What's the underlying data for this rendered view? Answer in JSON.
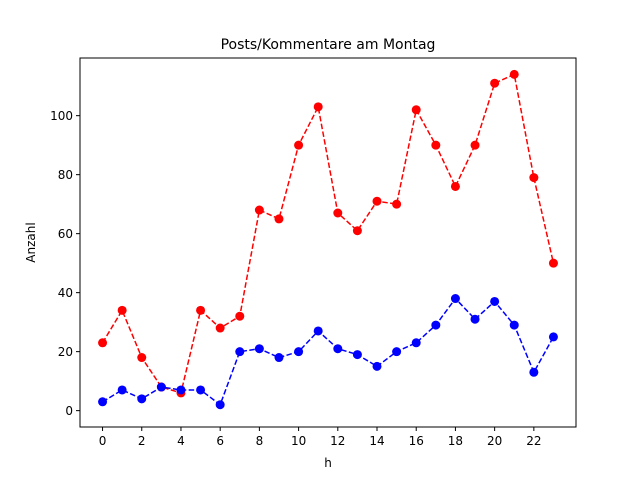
{
  "chart_data": {
    "type": "line",
    "title": "Posts/Kommentare am Montag",
    "xlabel": "h",
    "ylabel": "Anzahl",
    "x": [
      0,
      1,
      2,
      3,
      4,
      5,
      6,
      7,
      8,
      9,
      10,
      11,
      12,
      13,
      14,
      15,
      16,
      17,
      18,
      19,
      20,
      21,
      22,
      23
    ],
    "xticks": [
      0,
      2,
      4,
      6,
      8,
      10,
      12,
      14,
      16,
      18,
      20,
      22
    ],
    "yticks": [
      0,
      20,
      40,
      60,
      80,
      100
    ],
    "xlim": [
      -1.15,
      24.15
    ],
    "ylim": [
      -5.55,
      119.55
    ],
    "grid": false,
    "legend": "none",
    "series": [
      {
        "color": "#ff0000",
        "linestyle": "dashed",
        "marker": "circle",
        "values": [
          23,
          34,
          18,
          8,
          6,
          34,
          28,
          32,
          68,
          65,
          90,
          103,
          67,
          61,
          71,
          70,
          102,
          90,
          76,
          90,
          111,
          114,
          79,
          50
        ]
      },
      {
        "color": "#0000ff",
        "linestyle": "dashed",
        "marker": "circle",
        "values": [
          3,
          7,
          4,
          8,
          7,
          7,
          2,
          20,
          21,
          18,
          20,
          27,
          21,
          19,
          15,
          20,
          23,
          29,
          38,
          31,
          37,
          29,
          13,
          25
        ]
      }
    ]
  }
}
